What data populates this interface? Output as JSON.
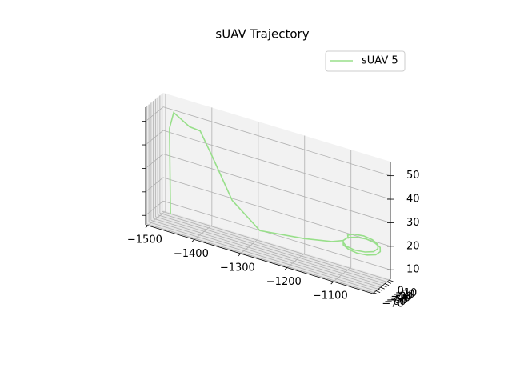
{
  "chart_data": {
    "type": "line3d",
    "title": "sUAV Trajectory",
    "series": [
      {
        "name": "sUAV 5",
        "color": "#98df8a",
        "x": [
          -1486,
          -1488,
          -1479,
          -1445,
          -1422,
          -1396,
          -1353,
          -1293,
          -1198,
          -1138,
          -1105,
          -1100,
          -1085,
          -1065,
          -1045,
          -1030,
          -1025,
          -1030,
          -1045,
          -1065,
          -1085,
          -1100,
          -1105,
          -1100,
          -1090,
          -1070,
          -1050,
          -1035,
          -1030,
          -1035,
          -1050,
          -1070,
          -1090,
          -1100,
          -1095
        ],
        "y": [
          -2,
          -2,
          -2,
          -2,
          -2,
          -2,
          -2,
          -2,
          -2,
          -2,
          -20,
          -30,
          -37,
          -40,
          -37,
          -30,
          -20,
          -10,
          -3,
          0,
          -3,
          -10,
          -20,
          -30,
          -37,
          -40,
          -37,
          -30,
          -20,
          -10,
          -3,
          0,
          -3,
          -10,
          -18
        ],
        "z": [
          6,
          42.5,
          49.7,
          45.7,
          45.3,
          36,
          19.9,
          10.6,
          12.9,
          15.2,
          19,
          18.2,
          17.7,
          17.5,
          17.7,
          18.2,
          19,
          19.8,
          20.3,
          20.5,
          20.3,
          19.8,
          19,
          19.2,
          18.7,
          18.5,
          18.7,
          19.2,
          20,
          20.8,
          21.3,
          21.5,
          21.3,
          20.8,
          20.2
        ]
      }
    ],
    "xlim": [
      -1505,
      -1015
    ],
    "ylim": [
      -75,
      5
    ],
    "zlim": [
      6,
      56
    ],
    "xticks": [
      {
        "value": -1500,
        "label": "−1500"
      },
      {
        "value": -1400,
        "label": "−1400"
      },
      {
        "value": -1300,
        "label": "−1300"
      },
      {
        "value": -1200,
        "label": "−1200"
      },
      {
        "value": -1100,
        "label": "−1100"
      }
    ],
    "yticks": [
      {
        "value": -70,
        "label": "−70"
      },
      {
        "value": -60,
        "label": "−60"
      },
      {
        "value": -50,
        "label": "−50"
      },
      {
        "value": -40,
        "label": "−40"
      },
      {
        "value": -30,
        "label": "−30"
      },
      {
        "value": -20,
        "label": "−20"
      },
      {
        "value": -10,
        "label": "−10"
      },
      0
    ],
    "zticks": [
      10,
      20,
      30,
      40,
      50
    ],
    "grid": true,
    "legend": "upper right"
  }
}
